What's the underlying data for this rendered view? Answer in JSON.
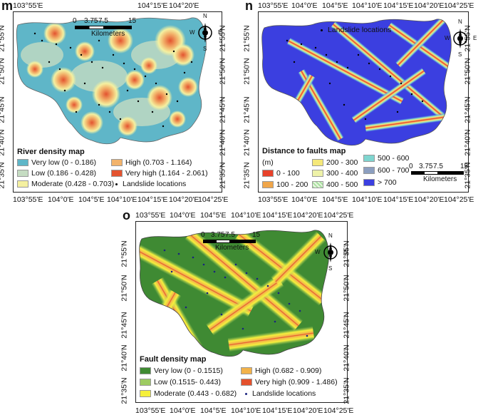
{
  "panels": {
    "m": {
      "label": "m",
      "x_ticks": [
        "103°55'E",
        "104°0'E",
        "104°5'E",
        "104°10'E",
        "104°15'E",
        "104°20'E",
        "104°25'E"
      ],
      "y_ticks": [
        "21°55'N",
        "21°50'N",
        "21°45'N",
        "21°40'N",
        "21°35'N"
      ],
      "scale": {
        "ticks": [
          "0",
          "3.75",
          "7.5",
          "15"
        ],
        "unit": "Kilometers"
      },
      "legend": {
        "title": "River density map",
        "items": [
          {
            "label": "Very low (0 - 0.186)",
            "color": "#5fb6c8"
          },
          {
            "label": "Low (0.186 - 0.428)",
            "color": "#c5dcc2"
          },
          {
            "label": "Moderate (0.428 - 0.703)",
            "color": "#f4f0a0"
          },
          {
            "label": "High (0.703 - 1.164)",
            "color": "#f2b36b"
          },
          {
            "label": "Very high (1.164 - 2.061)",
            "color": "#e3532f"
          },
          {
            "label": "Landslide locations",
            "color": "#000000"
          }
        ]
      }
    },
    "n": {
      "label": "n",
      "x_ticks": [
        "103°55'E",
        "104°0'E",
        "104°5'E",
        "104°10'E",
        "104°15'E",
        "104°20'E",
        "104°25'E"
      ],
      "y_ticks": [
        "21°55'N",
        "21°50'N",
        "21°45'N",
        "21°40'N",
        "21°35'N"
      ],
      "scale": {
        "ticks": [
          "0",
          "3.75",
          "7.5",
          "15"
        ],
        "unit": "Kilometers"
      },
      "top_legend": "Landslide locations",
      "legend": {
        "title": "Distance to faults map",
        "unit": "(m)",
        "items": [
          {
            "label": "0 - 100",
            "color": "#e8412a"
          },
          {
            "label": "100 - 200",
            "color": "#f0a64a"
          },
          {
            "label": "200 - 300",
            "color": "#f5e87a"
          },
          {
            "label": "300 - 400",
            "color": "#eef2a8"
          },
          {
            "label": "400 - 500",
            "color": "#a8e0a0"
          },
          {
            "label": "500 - 600",
            "color": "#7fd6d0"
          },
          {
            "label": "600 - 700",
            "color": "#8c9fc0"
          },
          {
            "label": "> 700",
            "color": "#3b3fe0"
          }
        ]
      }
    },
    "o": {
      "label": "o",
      "x_ticks": [
        "103°55'E",
        "104°0'E",
        "104°5'E",
        "104°10'E",
        "104°15'E",
        "104°20'E",
        "104°25'E"
      ],
      "y_ticks": [
        "21°55'N",
        "21°50'N",
        "21°45'N",
        "21°40'N",
        "21°35'N"
      ],
      "scale": {
        "ticks": [
          "0",
          "3.75",
          "7.5",
          "15"
        ],
        "unit": "Kilometers"
      },
      "legend": {
        "title": "Fault density map",
        "items": [
          {
            "label": "Very low (0 - 0.1515)",
            "color": "#3f8a33"
          },
          {
            "label": "Low (0.1515- 0.443)",
            "color": "#9dcb62"
          },
          {
            "label": "Moderate (0.443 - 0.682)",
            "color": "#f5f03c"
          },
          {
            "label": "High (0.682 - 0.909)",
            "color": "#f2b24a"
          },
          {
            "label": "Very high (0.909 - 1.486)",
            "color": "#e4502c"
          },
          {
            "label": "Landslide locations",
            "color": "#1a237e"
          }
        ]
      }
    }
  },
  "compass": {
    "n": "N",
    "s": "S",
    "e": "E",
    "w": "W"
  }
}
